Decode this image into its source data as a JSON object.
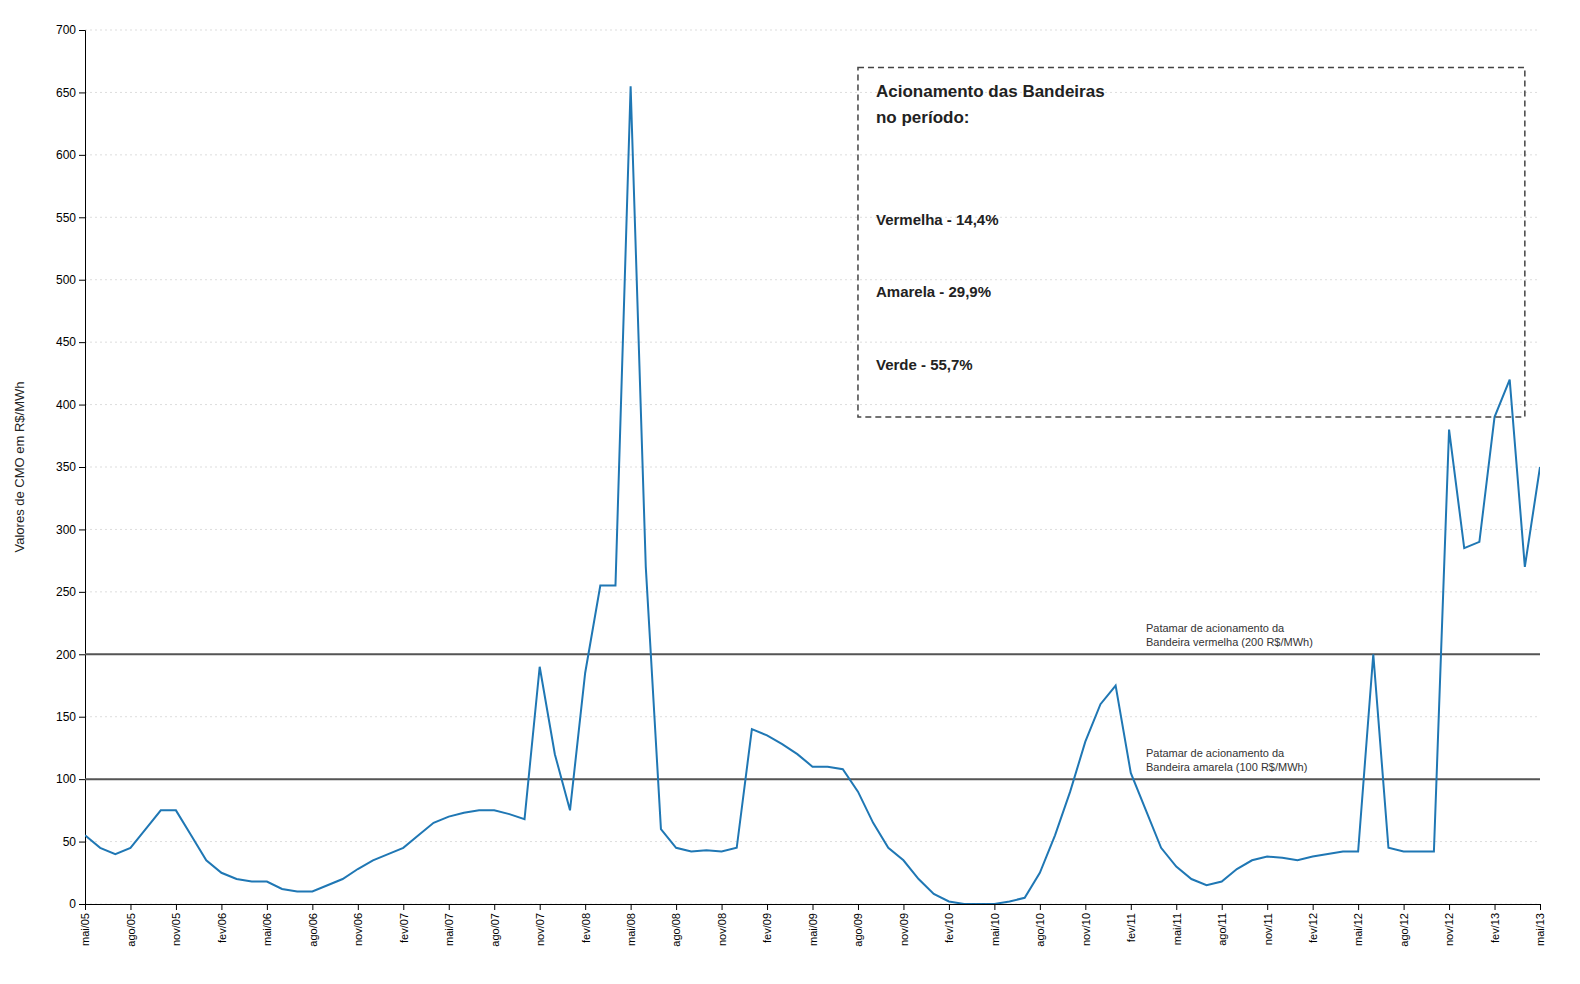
{
  "chart_data": {
    "type": "line",
    "y_label": "Valores de CMO em R$/MWh",
    "categories": [
      "mai/05",
      null,
      null,
      "ago/05",
      null,
      null,
      "nov/05",
      null,
      null,
      "fev/06",
      null,
      null,
      "mai/06",
      null,
      null,
      "ago/06",
      null,
      null,
      "nov/06",
      null,
      null,
      "fev/07",
      null,
      null,
      "mai/07",
      null,
      null,
      "ago/07",
      null,
      null,
      "nov/07",
      null,
      null,
      "fev/08",
      null,
      null,
      "mai/08",
      null,
      null,
      "ago/08",
      null,
      null,
      "nov/08",
      null,
      null,
      "fev/09",
      null,
      null,
      "mai/09",
      null,
      null,
      "ago/09",
      null,
      null,
      "nov/09",
      null,
      null,
      "fev/10",
      null,
      null,
      "mai/10",
      null,
      null,
      "ago/10",
      null,
      null,
      "nov/10",
      null,
      null,
      "fev/11",
      null,
      null,
      "mai/11",
      null,
      null,
      "ago/11",
      null,
      null,
      "nov/11",
      null,
      null,
      "fev/12",
      null,
      null,
      "mai/12",
      null,
      null,
      "ago/12",
      null,
      null,
      "nov/12",
      null,
      null,
      "fev/13",
      null,
      null,
      "mai/13"
    ],
    "values": [
      55,
      45,
      40,
      45,
      60,
      75,
      75,
      55,
      35,
      25,
      20,
      18,
      18,
      12,
      10,
      10,
      15,
      20,
      28,
      35,
      40,
      45,
      55,
      65,
      70,
      73,
      75,
      75,
      72,
      68,
      190,
      120,
      75,
      185,
      255,
      255,
      655,
      270,
      60,
      45,
      42,
      43,
      42,
      45,
      140,
      135,
      128,
      120,
      110,
      110,
      108,
      90,
      65,
      45,
      35,
      20,
      8,
      2,
      0,
      0,
      0,
      2,
      5,
      25,
      55,
      90,
      130,
      160,
      175,
      105,
      75,
      45,
      30,
      20,
      15,
      18,
      28,
      35,
      38,
      37,
      35,
      38,
      40,
      42,
      42,
      200,
      45,
      42,
      42,
      42,
      380,
      285,
      290,
      390,
      420,
      270,
      350
    ],
    "ylim": [
      0,
      700
    ],
    "yticks": [
      0,
      50,
      100,
      150,
      200,
      250,
      300,
      350,
      400,
      450,
      500,
      550,
      600,
      650,
      700
    ],
    "grid": true,
    "reference_lines": [
      {
        "value": 200,
        "label": "Patamar de acionamento da\nBandeira vermelha (200 R$/MWh)"
      },
      {
        "value": 100,
        "label": "Patamar de acionamento da\nBandeira amarela (100 R$/MWh)"
      }
    ],
    "annotations": {
      "title": "Acionamento das Bandeiras\nno período:",
      "lines": [
        "Vermelha - 14,4%",
        "Amarela - 29,9%",
        "Verde - 55,7%"
      ]
    }
  }
}
